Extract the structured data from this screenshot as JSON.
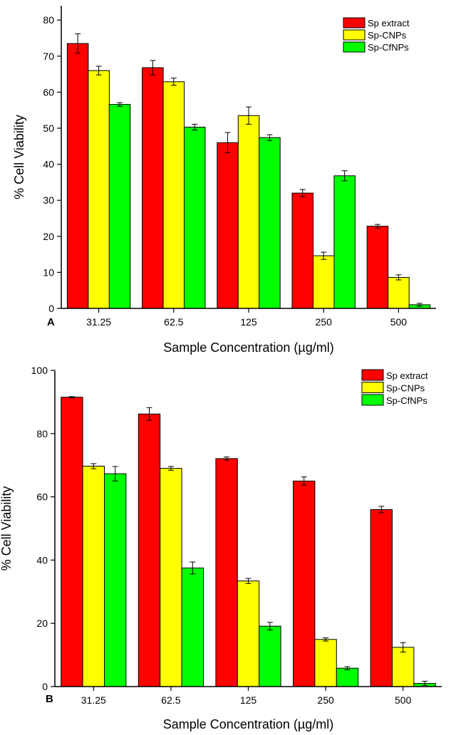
{
  "colors": {
    "sp_extract": "#ff0000",
    "sp_cnps": "#ffff00",
    "sp_cfnps": "#00ff00"
  },
  "chart_data": [
    {
      "type": "bar",
      "panel": "A",
      "categories": [
        "31.25",
        "62.5",
        "125",
        "250",
        "500"
      ],
      "xlabel": "Sample Concentration (µg/ml)",
      "ylabel": "% Cell Viability",
      "ylim": [
        0,
        84
      ],
      "yticks": [
        "0",
        "10",
        "20",
        "30",
        "40",
        "50",
        "60",
        "70",
        "80"
      ],
      "legend_position": "top-right",
      "series": [
        {
          "name": "Sp extract",
          "values": [
            73.5,
            66.8,
            46.0,
            32.0,
            22.8
          ],
          "errors": [
            2.7,
            2.0,
            2.8,
            1.0,
            0.5
          ]
        },
        {
          "name": "Sp-CNPs",
          "values": [
            66.0,
            62.9,
            53.5,
            14.6,
            8.6
          ],
          "errors": [
            1.2,
            1.0,
            2.4,
            1.0,
            0.7
          ]
        },
        {
          "name": "Sp-CfNPs",
          "values": [
            56.6,
            50.3,
            47.4,
            36.8,
            1.0
          ],
          "errors": [
            0.5,
            0.8,
            0.8,
            1.4,
            0.4
          ]
        }
      ]
    },
    {
      "type": "bar",
      "panel": "B",
      "categories": [
        "31.25",
        "62.5",
        "125",
        "250",
        "500"
      ],
      "xlabel": "Sample Concentration (µg/ml)",
      "ylabel": "% Cell Viability",
      "ylim": [
        0,
        100
      ],
      "yticks": [
        "0",
        "20",
        "40",
        "60",
        "80",
        "100"
      ],
      "legend_position": "top-right",
      "series": [
        {
          "name": "Sp extract",
          "values": [
            91.5,
            86.2,
            72.1,
            65.0,
            56.0
          ],
          "errors": [
            0.2,
            2.0,
            0.5,
            1.3,
            1.0
          ]
        },
        {
          "name": "Sp-CNPs",
          "values": [
            69.7,
            69.0,
            33.4,
            14.9,
            12.4
          ],
          "errors": [
            0.8,
            0.6,
            0.8,
            0.5,
            1.5
          ]
        },
        {
          "name": "Sp-CfNPs",
          "values": [
            67.3,
            37.5,
            19.1,
            5.8,
            1.0
          ],
          "errors": [
            2.3,
            1.9,
            1.2,
            0.5,
            0.7
          ]
        }
      ]
    }
  ]
}
